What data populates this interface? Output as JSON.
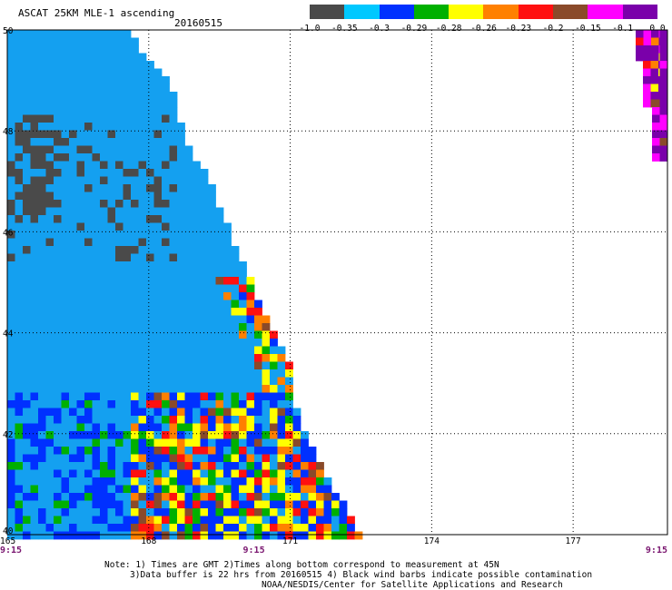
{
  "header": {
    "title": "ASCAT 25KM MLE-1 ascending",
    "date": "20160515"
  },
  "legend": {
    "colors": [
      "#4a4a4a",
      "#00c8ff",
      "#0030ff",
      "#00b000",
      "#ffff00",
      "#ff8000",
      "#ff1010",
      "#8a4a2a",
      "#ff00ff",
      "#7a00aa"
    ],
    "tick_labels": [
      "-1.0",
      "-0.35",
      "-0.3",
      "-0.29",
      "-0.28",
      "-0.26",
      "-0.23",
      "-0.2",
      "-0.15",
      "-0.1",
      "0.0"
    ]
  },
  "axes": {
    "x_ticks": [
      "165",
      "168",
      "171",
      "174",
      "177"
    ],
    "y_ticks": [
      "50",
      "48",
      "46",
      "44",
      "42",
      "40"
    ],
    "times": [
      "9:15",
      "9:15",
      "9:15"
    ]
  },
  "notes": {
    "line1": "Note: 1) Times are GMT 2)Times along bottom correspond to measurement at 45N",
    "line2": "3)Data buffer is 22 hrs from 20160515 4) Black wind barbs indicate possible contamination",
    "line3": "NOAA/NESDIS/Center for Satellite Applications and Research"
  }
}
